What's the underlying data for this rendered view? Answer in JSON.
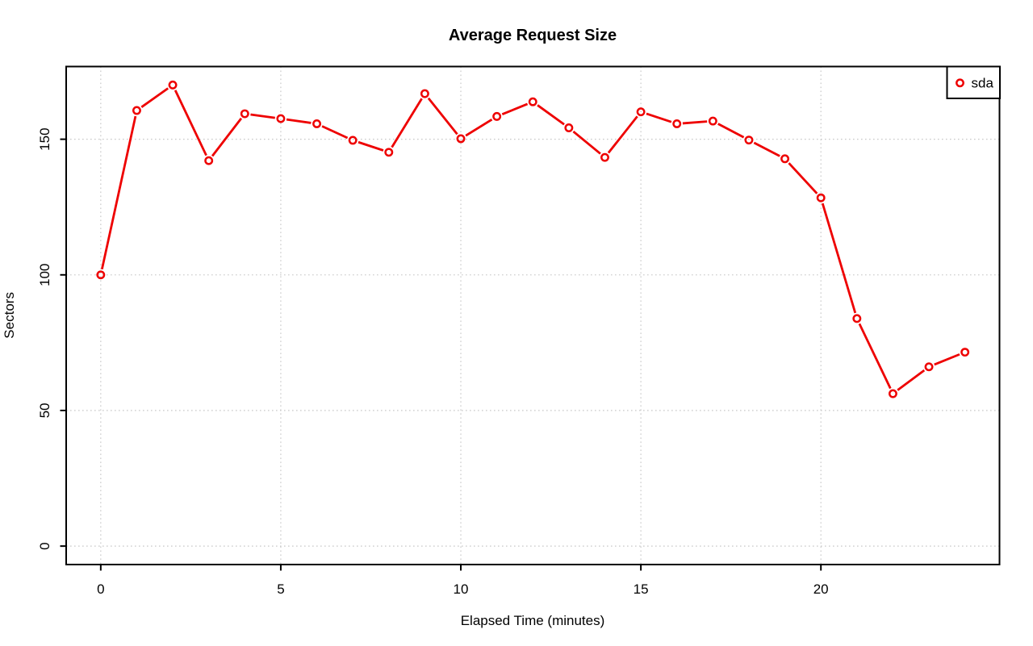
{
  "title": "Average Request Size",
  "x_axis_label": "Elapsed Time (minutes)",
  "y_axis_label": "Sectors",
  "legend": {
    "position": "top-right",
    "items": [
      {
        "label": "sda",
        "marker": "open-circle",
        "color": "#EE0000"
      }
    ]
  },
  "colors": {
    "series": "#EE0000",
    "grid": "#C8C8C8",
    "axis": "#000000",
    "text": "#000000",
    "background": "#FFFFFF"
  },
  "chart_data": {
    "type": "line",
    "title": "Average Request Size",
    "xlabel": "Elapsed Time (minutes)",
    "ylabel": "Sectors",
    "x": [
      0,
      1,
      2,
      3,
      4,
      5,
      6,
      7,
      8,
      9,
      10,
      11,
      12,
      13,
      14,
      15,
      16,
      17,
      18,
      19,
      20,
      21,
      22,
      23,
      24
    ],
    "series": [
      {
        "name": "sda",
        "color": "#EE0000",
        "values": [
          100.0,
          160.6,
          170.0,
          142.1,
          159.4,
          157.6,
          155.7,
          149.6,
          145.2,
          166.8,
          150.2,
          158.4,
          163.8,
          154.2,
          143.3,
          160.1,
          155.7,
          156.7,
          149.7,
          142.8,
          128.4,
          83.9,
          56.2,
          66.1,
          71.5
        ]
      }
    ],
    "x_ticks": [
      0,
      5,
      10,
      15,
      20
    ],
    "y_ticks": [
      0,
      50,
      100,
      150
    ],
    "xlim": [
      -0.96,
      24.96
    ],
    "ylim": [
      -6.8,
      176.8
    ],
    "grid": "dotted",
    "grid_on": true,
    "marker": "open-circle",
    "line_style": "segments-with-marker-gaps",
    "legend_position": "top-right"
  }
}
